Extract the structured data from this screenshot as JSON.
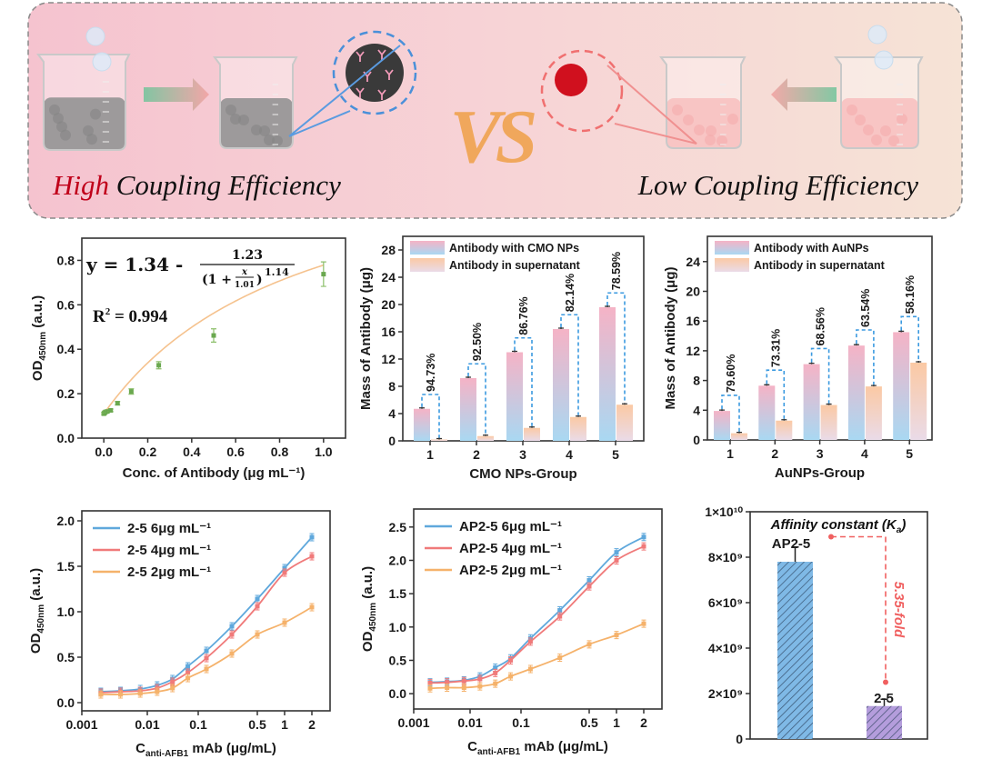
{
  "banner": {
    "left_caption_highlight": "High",
    "left_caption_rest": " Coupling Efficiency",
    "vs": "VS",
    "right_caption": "Low Coupling Efficiency",
    "colors": {
      "highlight": "#c0001a",
      "vs": "#f0a75c",
      "left_liquid": "#5a5a5a",
      "right_liquid": "#f4a0a0",
      "cmo_ring": "#4a90d9",
      "au_ring": "#f07070",
      "au_ball": "#d0101e"
    }
  },
  "chart_data": [
    {
      "type": "scatter",
      "xlabel": "Conc. of Antibody (μg mL⁻¹)",
      "ylabel": {
        "main": "OD",
        "sub": "450nm",
        "rest": " (a.u.)"
      },
      "xlim": [
        -0.1,
        1.1
      ],
      "ylim": [
        0,
        0.9
      ],
      "xticks": [
        {
          "value": 0,
          "label": "0.0"
        },
        {
          "value": 0.2,
          "label": "0.2"
        },
        {
          "value": 0.4,
          "label": "0.4"
        },
        {
          "value": 0.6,
          "label": "0.6"
        },
        {
          "value": 0.8,
          "label": "0.8"
        },
        {
          "value": 1.0,
          "label": "1.0"
        }
      ],
      "yticks": [
        {
          "value": 0,
          "label": "0.0"
        },
        {
          "value": 0.2,
          "label": "0.2"
        },
        {
          "value": 0.4,
          "label": "0.4"
        },
        {
          "value": 0.6,
          "label": "0.6"
        },
        {
          "value": 0.8,
          "label": "0.8"
        }
      ],
      "x": [
        0,
        0.00195,
        0.0039,
        0.0078,
        0.0156,
        0.03125,
        0.0625,
        0.125,
        0.25,
        0.5,
        1.0
      ],
      "y": [
        0.11,
        0.112,
        0.115,
        0.118,
        0.12,
        0.125,
        0.157,
        0.21,
        0.328,
        0.462,
        0.738
      ],
      "err": [
        0.005,
        0.005,
        0.005,
        0.005,
        0.005,
        0.006,
        0.008,
        0.012,
        0.016,
        0.03,
        0.055
      ],
      "fit": {
        "a": 1.34,
        "b": 1.23,
        "c": 1.01,
        "d": 1.14
      },
      "equation": {
        "lhs": "y = 1.34 -",
        "num": "1.23",
        "den_open": "(1 +",
        "den_x": "x",
        "den_c": "1.01",
        "den_close": ")",
        "den_exp": "1.14"
      },
      "r2": {
        "r": "R",
        "sup": "2",
        "rest": " = 0.994"
      },
      "colors": {
        "points": "#6aa84f",
        "fit": "#f5c28e"
      }
    },
    {
      "type": "bar",
      "xlabel": "CMO NPs-Group",
      "ylabel": "Mass of Antibody (μg)",
      "ylim": [
        0,
        30
      ],
      "categories": [
        "1",
        "2",
        "3",
        "4",
        "5"
      ],
      "yticks": [
        {
          "value": 0,
          "label": "0"
        },
        {
          "value": 4,
          "label": "4"
        },
        {
          "value": 8,
          "label": "8"
        },
        {
          "value": 12,
          "label": "12"
        },
        {
          "value": 16,
          "label": "16"
        },
        {
          "value": 20,
          "label": "20"
        },
        {
          "value": 24,
          "label": "24"
        },
        {
          "value": 28,
          "label": "28"
        }
      ],
      "series": [
        {
          "name": "Antibody with CMO NPs",
          "values": [
            4.7,
            9.2,
            13.0,
            16.4,
            19.6
          ]
        },
        {
          "name": "Antibody in supernatant",
          "values": [
            0.2,
            0.7,
            1.9,
            3.5,
            5.3
          ]
        }
      ],
      "annotations": [
        "94.73%",
        "92.50%",
        "86.76%",
        "82.14%",
        "78.59%"
      ],
      "legend": "top-left"
    },
    {
      "type": "bar",
      "xlabel": "AuNPs-Group",
      "ylabel": "Mass of Antibody (μg)",
      "ylim": [
        0,
        27.4
      ],
      "categories": [
        "1",
        "2",
        "3",
        "4",
        "5"
      ],
      "yticks": [
        {
          "value": 0,
          "label": "0"
        },
        {
          "value": 4,
          "label": "4"
        },
        {
          "value": 8,
          "label": "8"
        },
        {
          "value": 12,
          "label": "12"
        },
        {
          "value": 16,
          "label": "16"
        },
        {
          "value": 20,
          "label": "20"
        },
        {
          "value": 24,
          "label": "24"
        }
      ],
      "series": [
        {
          "name": "Antibody with AuNPs",
          "values": [
            3.9,
            7.3,
            10.2,
            12.7,
            14.5
          ]
        },
        {
          "name": "Antibody in supernatant",
          "values": [
            0.9,
            2.6,
            4.7,
            7.2,
            10.4
          ]
        }
      ],
      "annotations": [
        "79.60%",
        "73.31%",
        "68.56%",
        "63.54%",
        "58.16%"
      ],
      "legend": "top-left"
    },
    {
      "type": "line",
      "xlabel": {
        "main": "C",
        "sub": "anti-AFB1",
        "rest": " mAb (μg/mL)"
      },
      "ylabel": {
        "main": "OD",
        "sub": "450nm",
        "rest": " (a.u.)"
      },
      "xscale": "log",
      "ylim": [
        -0.09,
        2.11
      ],
      "xticks": [
        {
          "value": 0.001,
          "label": "0.001"
        },
        {
          "value": 0.01,
          "label": "0.01"
        },
        {
          "value": 0.1,
          "label": "0.1"
        },
        {
          "value": 0.5,
          "label": "0.5"
        },
        {
          "value": 1,
          "label": "1"
        },
        {
          "value": 2,
          "label": "2"
        }
      ],
      "yticks": [
        {
          "value": 0,
          "label": "0.0"
        },
        {
          "value": 0.5,
          "label": "0.5"
        },
        {
          "value": 1.0,
          "label": "1.0"
        },
        {
          "value": 1.5,
          "label": "1.5"
        },
        {
          "value": 2.0,
          "label": "2.0"
        }
      ],
      "x": [
        0.00195,
        0.0039,
        0.0078,
        0.0156,
        0.03125,
        0.0625,
        0.125,
        0.25,
        0.5,
        1,
        2
      ],
      "series": [
        {
          "name": "2-5 6μg mL⁻¹",
          "color": "#5fa8dc",
          "values": [
            0.12,
            0.13,
            0.15,
            0.19,
            0.26,
            0.4,
            0.57,
            0.84,
            1.14,
            1.48,
            1.82
          ]
        },
        {
          "name": "2-5 4μg mL⁻¹",
          "color": "#f07a7a",
          "values": [
            0.11,
            0.12,
            0.13,
            0.16,
            0.23,
            0.33,
            0.49,
            0.75,
            1.06,
            1.43,
            1.61
          ]
        },
        {
          "name": "2-5 2μg mL⁻¹",
          "color": "#f5b26b",
          "values": [
            0.09,
            0.09,
            0.1,
            0.12,
            0.16,
            0.27,
            0.37,
            0.54,
            0.75,
            0.88,
            1.05
          ]
        }
      ],
      "legend": "top-left"
    },
    {
      "type": "line",
      "xlabel": {
        "main": "C",
        "sub": "anti-AFB1",
        "rest": " mAb (μg/mL)"
      },
      "ylabel": {
        "main": "OD",
        "sub": "450nm",
        "rest": " (a.u.)"
      },
      "xscale": "log",
      "ylim": [
        -0.23,
        2.77
      ],
      "xticks": [
        {
          "value": 0.001,
          "label": "0.001"
        },
        {
          "value": 0.01,
          "label": "0.01"
        },
        {
          "value": 0.1,
          "label": "0.1"
        },
        {
          "value": 0.5,
          "label": "0.5"
        },
        {
          "value": 1,
          "label": "1"
        },
        {
          "value": 2,
          "label": "2"
        }
      ],
      "yticks": [
        {
          "value": 0,
          "label": "0.0"
        },
        {
          "value": 0.5,
          "label": "0.5"
        },
        {
          "value": 1.0,
          "label": "1.0"
        },
        {
          "value": 1.5,
          "label": "1.5"
        },
        {
          "value": 2.0,
          "label": "2.0"
        },
        {
          "value": 2.5,
          "label": "2.5"
        }
      ],
      "x": [
        0.00195,
        0.0039,
        0.0078,
        0.0156,
        0.03125,
        0.0625,
        0.125,
        0.25,
        0.5,
        1,
        2
      ],
      "series": [
        {
          "name": "AP2-5 6μg mL⁻¹",
          "color": "#5fa8dc",
          "values": [
            0.17,
            0.18,
            0.2,
            0.26,
            0.39,
            0.53,
            0.83,
            1.25,
            1.7,
            2.12,
            2.35
          ]
        },
        {
          "name": "AP2-5 4μg mL⁻¹",
          "color": "#f07a7a",
          "values": [
            0.16,
            0.17,
            0.19,
            0.22,
            0.31,
            0.5,
            0.78,
            1.16,
            1.61,
            2.0,
            2.21
          ]
        },
        {
          "name": "AP2-5 2μg mL⁻¹",
          "color": "#f5b26b",
          "values": [
            0.08,
            0.09,
            0.09,
            0.11,
            0.15,
            0.26,
            0.37,
            0.54,
            0.74,
            0.88,
            1.05
          ]
        }
      ],
      "legend": "top-left"
    },
    {
      "type": "bar",
      "title": {
        "main": "Affinity constant (",
        "k": "K",
        "sub": "a",
        "close": ")"
      },
      "ylim": [
        0,
        10000000000
      ],
      "yticks": [
        {
          "value": 0,
          "label": "0"
        },
        {
          "value": 2000000000,
          "label": "2×10⁹"
        },
        {
          "value": 4000000000,
          "label": "4×10⁹"
        },
        {
          "value": 6000000000,
          "label": "6×10⁹"
        },
        {
          "value": 8000000000,
          "label": "8×10⁹"
        },
        {
          "value": 10000000000,
          "label": "1×10¹⁰"
        }
      ],
      "categories": [
        "AP2-5",
        "2-5"
      ],
      "values": [
        7800000000,
        1450000000
      ],
      "err": [
        650000000,
        300000000
      ],
      "colors": [
        "#7fb9e6",
        "#b49ddc"
      ],
      "annotation": "5.35-fold",
      "annotation_color": "#f06060"
    }
  ]
}
